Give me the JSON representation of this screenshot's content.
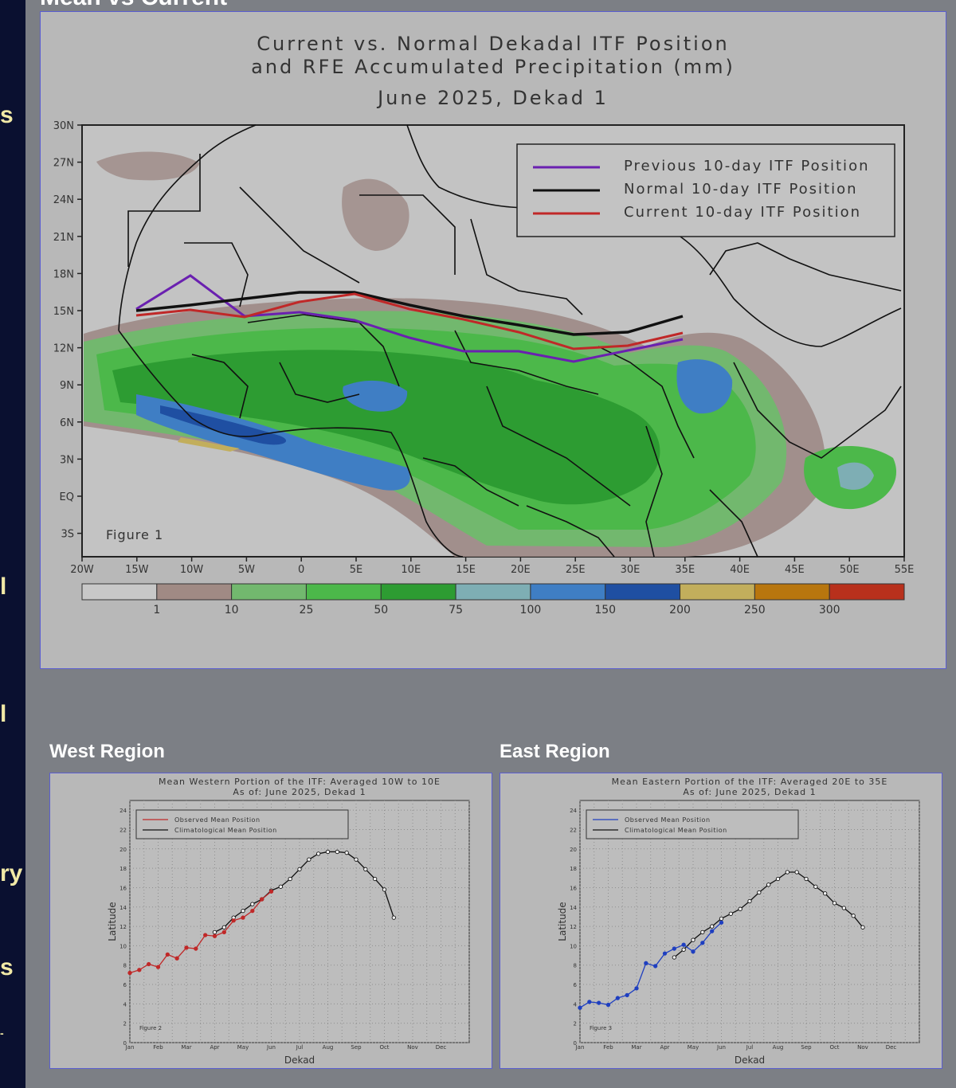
{
  "sidebar": {
    "fragments": [
      "s",
      "l",
      "l",
      "ry",
      "s",
      "-"
    ]
  },
  "page": {
    "heading": "Mean vs Current"
  },
  "map_figure": {
    "title_line1": "Current vs. Normal Dekadal ITF Position",
    "title_line2": "and RFE Accumulated Precipitation (mm)",
    "title_line3": "June 2025, Dekad 1",
    "figure_label": "Figure 1",
    "lat_ticks": [
      "30N",
      "27N",
      "24N",
      "21N",
      "18N",
      "15N",
      "12N",
      "9N",
      "6N",
      "3N",
      "EQ",
      "3S"
    ],
    "lon_ticks": [
      "20W",
      "15W",
      "10W",
      "5W",
      "0",
      "5E",
      "10E",
      "15E",
      "20E",
      "25E",
      "30E",
      "35E",
      "40E",
      "45E",
      "50E",
      "55E"
    ],
    "colorbar_labels": [
      "1",
      "10",
      "25",
      "50",
      "75",
      "100",
      "150",
      "200",
      "250",
      "300"
    ],
    "colorbar_colors": [
      "#c8c8c8",
      "#a08a84",
      "#72b86e",
      "#4cb84a",
      "#2d9c32",
      "#7eaeb4",
      "#3f7ec4",
      "#1f4fa2",
      "#c2ae5c",
      "#b8760e",
      "#b8301c"
    ],
    "legend": [
      "Previous 10-day ITF Position",
      "Normal 10-day ITF Position",
      "Current 10-day ITF Position"
    ],
    "legend_colors": [
      "#6a20b0",
      "#111111",
      "#c02828"
    ]
  },
  "chart_data": [
    {
      "type": "line",
      "title": "Mean Western Portion of the ITF: Averaged 10W to 10E",
      "subtitle": "As of: June 2025, Dekad 1",
      "xlabel": "Dekad",
      "ylabel": "Latitude",
      "figure_label": "Figure 2",
      "x_tick_labels": [
        "Jan",
        "Feb",
        "Mar",
        "Apr",
        "May",
        "Jun",
        "Jul",
        "Aug",
        "Sep",
        "Oct",
        "Nov",
        "Dec"
      ],
      "y_ticks": [
        "0",
        "2",
        "4",
        "6",
        "8",
        "10",
        "12",
        "14",
        "16",
        "18",
        "20",
        "22",
        "24"
      ],
      "ylim": [
        0,
        25
      ],
      "xlim": [
        1,
        37
      ],
      "grid": true,
      "legend_position": "top-left",
      "series": [
        {
          "name": "Observed Mean Position",
          "color": "#c02828",
          "x": [
            1,
            2,
            3,
            4,
            5,
            6,
            7,
            8,
            9,
            10,
            11,
            12,
            13,
            14,
            15,
            16,
            17
          ],
          "y": [
            7.2,
            7.5,
            8.1,
            7.8,
            9.1,
            8.7,
            9.8,
            9.7,
            11.1,
            11.0,
            11.4,
            12.6,
            12.9,
            13.6,
            14.8,
            15.6,
            null
          ]
        },
        {
          "name": "Climatological Mean Position",
          "color": "#111111",
          "x": [
            10,
            11,
            12,
            13,
            14,
            15,
            16,
            17,
            18,
            19,
            20,
            21,
            22,
            23,
            24,
            25,
            26,
            27,
            28,
            29
          ],
          "y": [
            11.4,
            11.9,
            12.9,
            13.6,
            14.3,
            14.8,
            15.7,
            16.1,
            16.9,
            17.9,
            18.9,
            19.5,
            19.7,
            19.7,
            19.6,
            18.9,
            17.9,
            16.9,
            15.8,
            12.9
          ]
        }
      ]
    },
    {
      "type": "line",
      "title": "Mean Eastern Portion of the ITF: Averaged 20E to 35E",
      "subtitle": "As of: June 2025, Dekad 1",
      "xlabel": "Dekad",
      "ylabel": "Latitude",
      "figure_label": "Figure 3",
      "x_tick_labels": [
        "Jan",
        "Feb",
        "Mar",
        "Apr",
        "May",
        "Jun",
        "Jul",
        "Aug",
        "Sep",
        "Oct",
        "Nov",
        "Dec"
      ],
      "y_ticks": [
        "0",
        "2",
        "4",
        "6",
        "8",
        "10",
        "12",
        "14",
        "16",
        "18",
        "20",
        "22",
        "24"
      ],
      "ylim": [
        0,
        25
      ],
      "xlim": [
        1,
        37
      ],
      "grid": true,
      "legend_position": "top-left",
      "series": [
        {
          "name": "Observed Mean Position",
          "color": "#1f3fc0",
          "x": [
            1,
            2,
            3,
            4,
            5,
            6,
            7,
            8,
            9,
            10,
            11,
            12,
            13,
            14,
            15,
            16,
            17
          ],
          "y": [
            3.6,
            4.2,
            4.1,
            3.9,
            4.6,
            4.9,
            5.6,
            8.2,
            7.9,
            9.2,
            9.7,
            10.1,
            9.4,
            10.3,
            11.5,
            12.4,
            null
          ]
        },
        {
          "name": "Climatological Mean Position",
          "color": "#111111",
          "x": [
            11,
            12,
            13,
            14,
            15,
            16,
            17,
            18,
            19,
            20,
            21,
            22,
            23,
            24,
            25,
            26,
            27,
            28,
            29,
            30,
            31,
            32
          ],
          "y": [
            8.8,
            9.6,
            10.6,
            11.4,
            12.0,
            12.8,
            13.3,
            13.8,
            14.6,
            15.5,
            16.3,
            16.9,
            17.6,
            17.6,
            16.9,
            16.1,
            15.4,
            14.4,
            13.9,
            13.1,
            11.9,
            null
          ]
        }
      ]
    }
  ],
  "west": {
    "heading": "West Region"
  },
  "east": {
    "heading": "East Region"
  }
}
